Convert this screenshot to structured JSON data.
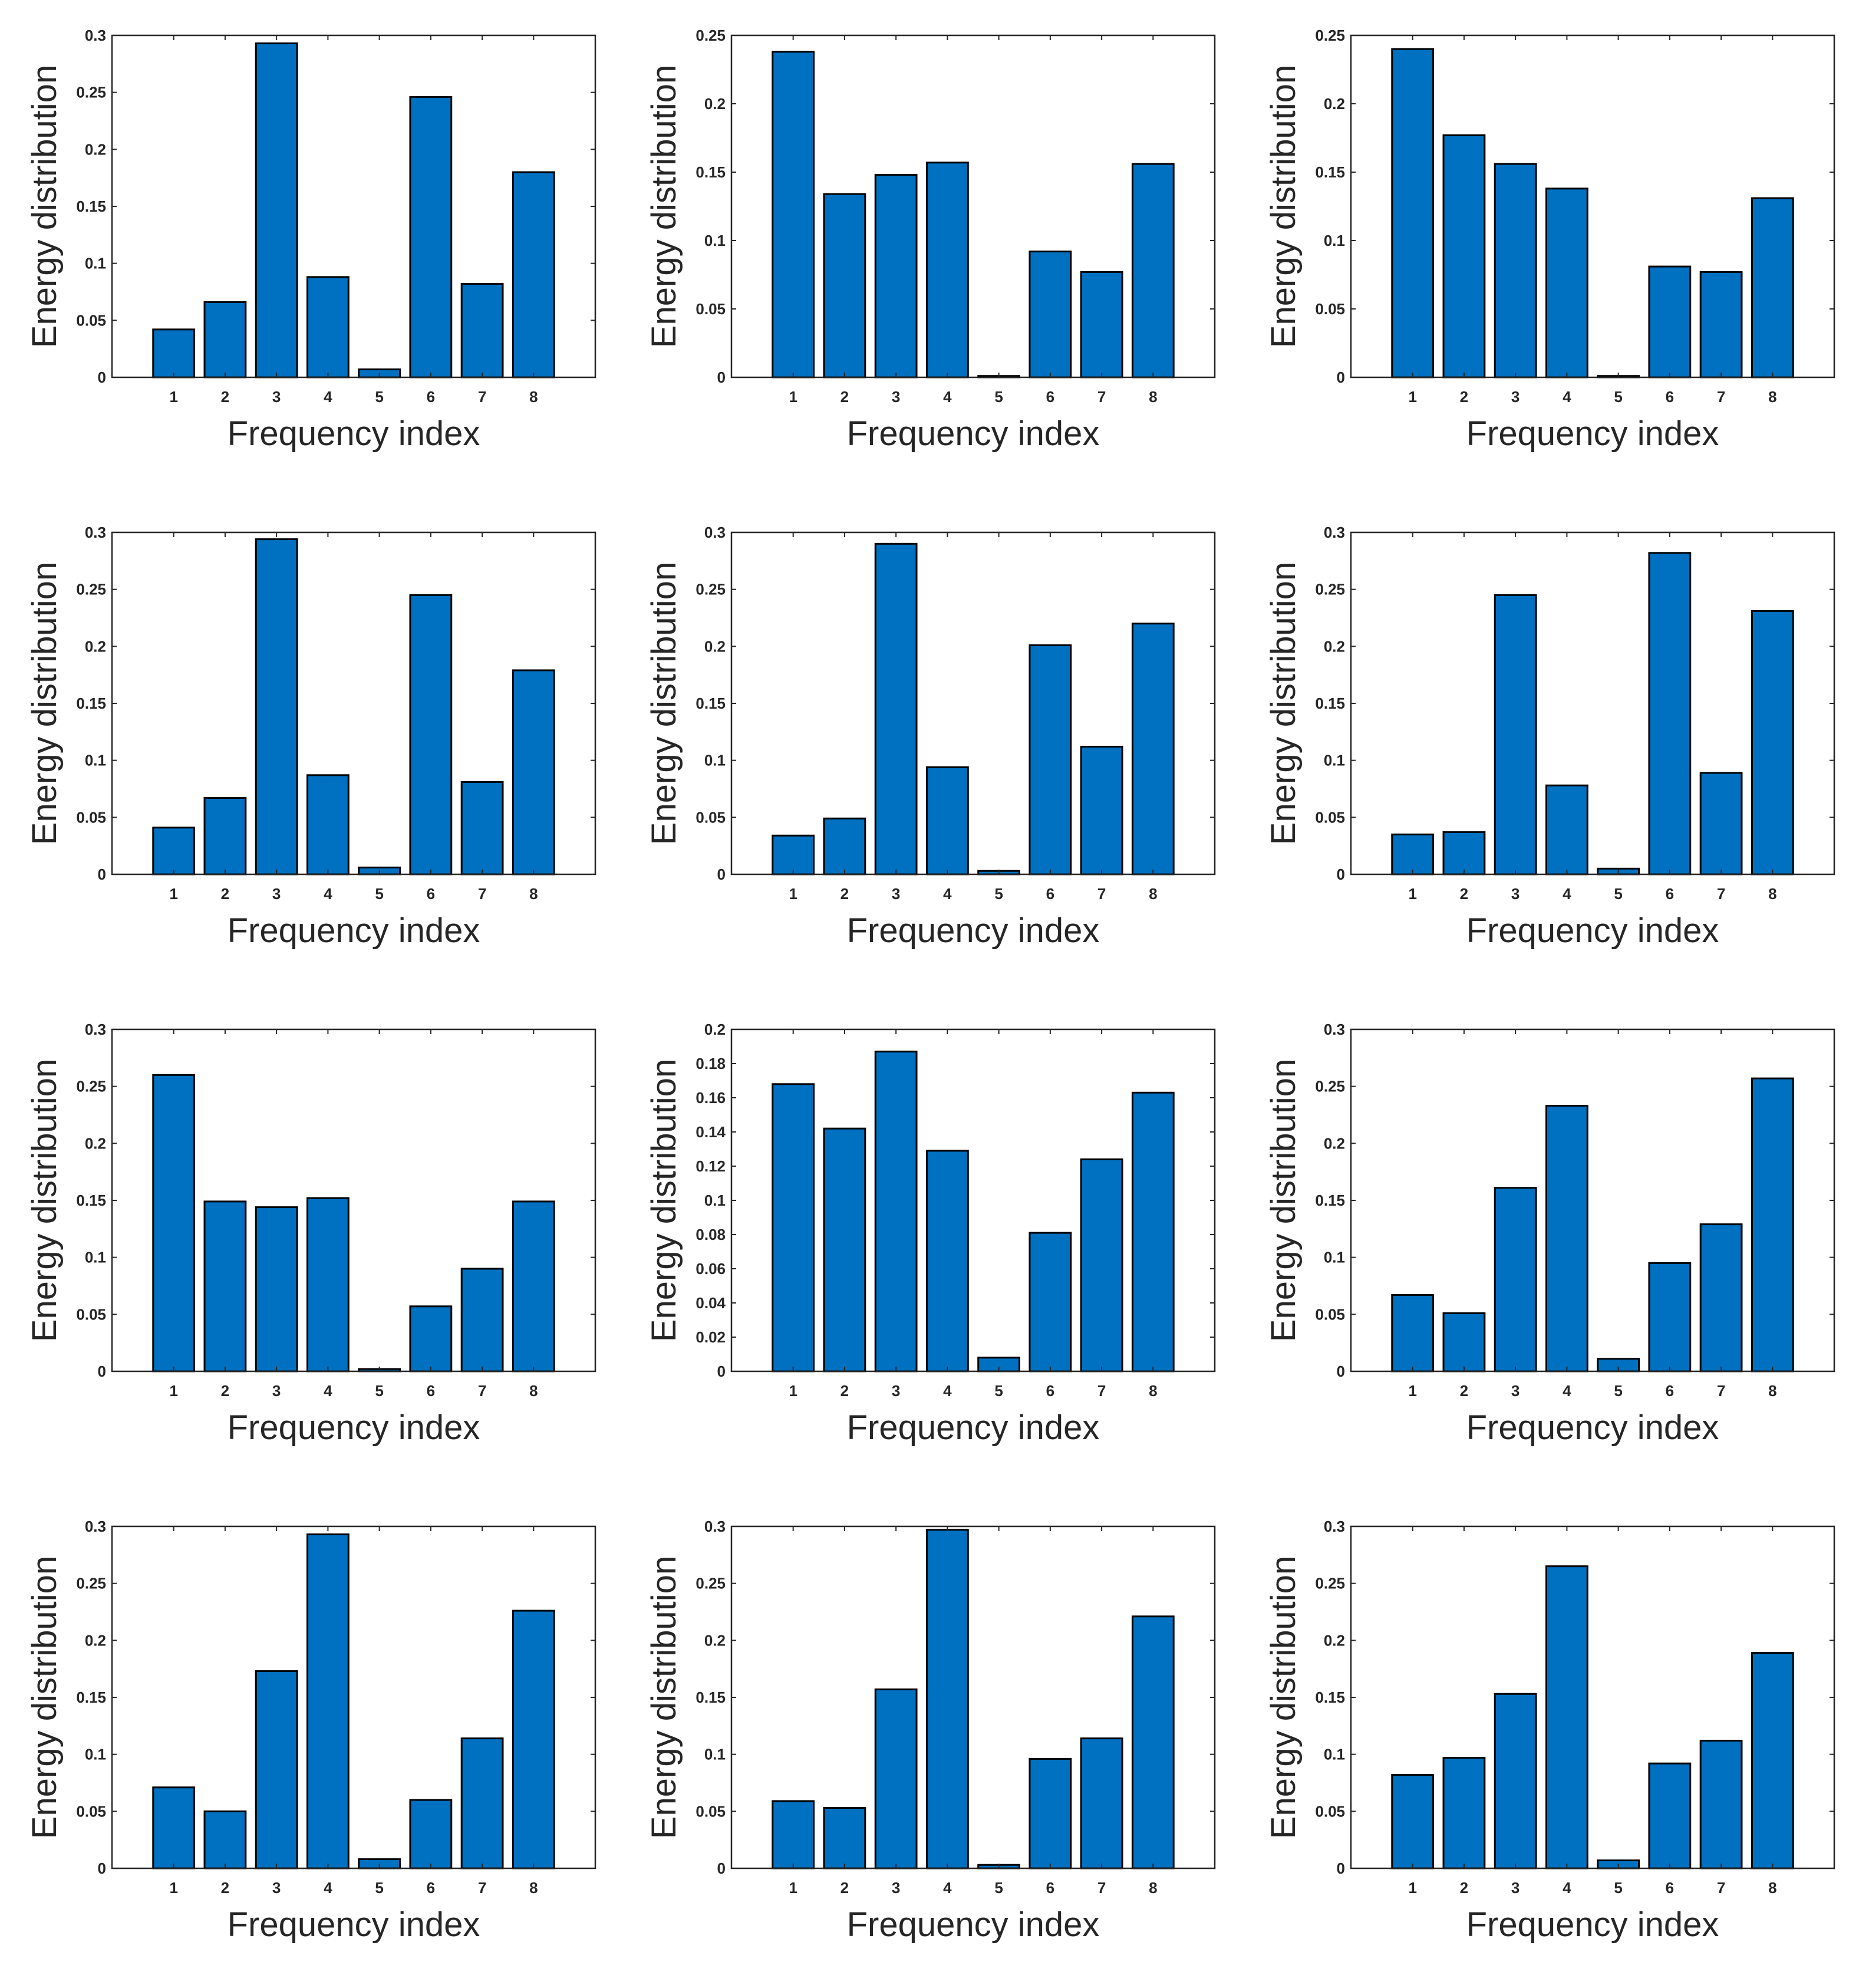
{
  "colors": {
    "bar": "#0070C0",
    "edge": "#000000",
    "axis": "#262626"
  },
  "chart_data": [
    {
      "type": "bar",
      "categories": [
        1,
        2,
        3,
        4,
        5,
        6,
        7,
        8
      ],
      "values": [
        0.042,
        0.066,
        0.293,
        0.088,
        0.007,
        0.246,
        0.082,
        0.18
      ],
      "xlabel": "Frequency index",
      "ylabel": "Energy distribution",
      "ylim": [
        0,
        0.3
      ],
      "yticks": [
        "0",
        "0.05",
        "0.1",
        "0.15",
        "0.2",
        "0.25",
        "0.3"
      ],
      "ytick_values": [
        0,
        0.05,
        0.1,
        0.15,
        0.2,
        0.25,
        0.3
      ],
      "xlim": [
        -0.2,
        9.2
      ],
      "grid": false
    },
    {
      "type": "bar",
      "categories": [
        1,
        2,
        3,
        4,
        5,
        6,
        7,
        8
      ],
      "values": [
        0.238,
        0.134,
        0.148,
        0.157,
        0.001,
        0.092,
        0.077,
        0.156
      ],
      "xlabel": "Frequency index",
      "ylabel": "Energy distribution",
      "ylim": [
        0,
        0.25
      ],
      "yticks": [
        "0",
        "0.05",
        "0.1",
        "0.15",
        "0.2",
        "0.25"
      ],
      "ytick_values": [
        0,
        0.05,
        0.1,
        0.15,
        0.2,
        0.25
      ],
      "xlim": [
        -0.2,
        9.2
      ],
      "grid": false
    },
    {
      "type": "bar",
      "categories": [
        1,
        2,
        3,
        4,
        5,
        6,
        7,
        8
      ],
      "values": [
        0.24,
        0.177,
        0.156,
        0.138,
        0.001,
        0.081,
        0.077,
        0.131
      ],
      "xlabel": "Frequency index",
      "ylabel": "Energy distribution",
      "ylim": [
        0,
        0.25
      ],
      "yticks": [
        "0",
        "0.05",
        "0.1",
        "0.15",
        "0.2",
        "0.25"
      ],
      "ytick_values": [
        0,
        0.05,
        0.1,
        0.15,
        0.2,
        0.25
      ],
      "xlim": [
        -0.2,
        9.2
      ],
      "grid": false
    },
    {
      "type": "bar",
      "categories": [
        1,
        2,
        3,
        4,
        5,
        6,
        7,
        8
      ],
      "values": [
        0.041,
        0.067,
        0.294,
        0.087,
        0.006,
        0.245,
        0.081,
        0.179
      ],
      "xlabel": "Frequency index",
      "ylabel": "Energy distribution",
      "ylim": [
        0,
        0.3
      ],
      "yticks": [
        "0",
        "0.05",
        "0.1",
        "0.15",
        "0.2",
        "0.25",
        "0.3"
      ],
      "ytick_values": [
        0,
        0.05,
        0.1,
        0.15,
        0.2,
        0.25,
        0.3
      ],
      "xlim": [
        -0.2,
        9.2
      ],
      "grid": false
    },
    {
      "type": "bar",
      "categories": [
        1,
        2,
        3,
        4,
        5,
        6,
        7,
        8
      ],
      "values": [
        0.034,
        0.049,
        0.29,
        0.094,
        0.003,
        0.201,
        0.112,
        0.22
      ],
      "xlabel": "Frequency index",
      "ylabel": "Energy distribution",
      "ylim": [
        0,
        0.3
      ],
      "yticks": [
        "0",
        "0.05",
        "0.1",
        "0.15",
        "0.2",
        "0.25",
        "0.3"
      ],
      "ytick_values": [
        0,
        0.05,
        0.1,
        0.15,
        0.2,
        0.25,
        0.3
      ],
      "xlim": [
        -0.2,
        9.2
      ],
      "grid": false
    },
    {
      "type": "bar",
      "categories": [
        1,
        2,
        3,
        4,
        5,
        6,
        7,
        8
      ],
      "values": [
        0.035,
        0.037,
        0.245,
        0.078,
        0.005,
        0.282,
        0.089,
        0.231
      ],
      "xlabel": "Frequency index",
      "ylabel": "Energy distribution",
      "ylim": [
        0,
        0.3
      ],
      "yticks": [
        "0",
        "0.05",
        "0.1",
        "0.15",
        "0.2",
        "0.25",
        "0.3"
      ],
      "ytick_values": [
        0,
        0.05,
        0.1,
        0.15,
        0.2,
        0.25,
        0.3
      ],
      "xlim": [
        -0.2,
        9.2
      ],
      "grid": false
    },
    {
      "type": "bar",
      "categories": [
        1,
        2,
        3,
        4,
        5,
        6,
        7,
        8
      ],
      "values": [
        0.26,
        0.149,
        0.144,
        0.152,
        0.002,
        0.057,
        0.09,
        0.149
      ],
      "xlabel": "Frequency index",
      "ylabel": "Energy distribution",
      "ylim": [
        0,
        0.3
      ],
      "yticks": [
        "0",
        "0.05",
        "0.1",
        "0.15",
        "0.2",
        "0.25",
        "0.3"
      ],
      "ytick_values": [
        0,
        0.05,
        0.1,
        0.15,
        0.2,
        0.25,
        0.3
      ],
      "xlim": [
        -0.2,
        9.2
      ],
      "grid": false
    },
    {
      "type": "bar",
      "categories": [
        1,
        2,
        3,
        4,
        5,
        6,
        7,
        8
      ],
      "values": [
        0.168,
        0.142,
        0.187,
        0.129,
        0.008,
        0.081,
        0.124,
        0.163
      ],
      "xlabel": "Frequency index",
      "ylabel": "Energy distribution",
      "ylim": [
        0,
        0.2
      ],
      "yticks": [
        "0",
        "0.02",
        "0.04",
        "0.06",
        "0.08",
        "0.1",
        "0.12",
        "0.14",
        "0.16",
        "0.18",
        "0.2"
      ],
      "ytick_values": [
        0,
        0.02,
        0.04,
        0.06,
        0.08,
        0.1,
        0.12,
        0.14,
        0.16,
        0.18,
        0.2
      ],
      "xlim": [
        -0.2,
        9.2
      ],
      "grid": false
    },
    {
      "type": "bar",
      "categories": [
        1,
        2,
        3,
        4,
        5,
        6,
        7,
        8
      ],
      "values": [
        0.067,
        0.051,
        0.161,
        0.233,
        0.011,
        0.095,
        0.129,
        0.257
      ],
      "xlabel": "Frequency index",
      "ylabel": "Energy distribution",
      "ylim": [
        0,
        0.3
      ],
      "yticks": [
        "0",
        "0.05",
        "0.1",
        "0.15",
        "0.2",
        "0.25",
        "0.3"
      ],
      "ytick_values": [
        0,
        0.05,
        0.1,
        0.15,
        0.2,
        0.25,
        0.3
      ],
      "xlim": [
        -0.2,
        9.2
      ],
      "grid": false
    },
    {
      "type": "bar",
      "categories": [
        1,
        2,
        3,
        4,
        5,
        6,
        7,
        8
      ],
      "values": [
        0.071,
        0.05,
        0.173,
        0.293,
        0.008,
        0.06,
        0.114,
        0.226
      ],
      "xlabel": "Frequency index",
      "ylabel": "Energy distribution",
      "ylim": [
        0,
        0.3
      ],
      "yticks": [
        "0",
        "0.05",
        "0.1",
        "0.15",
        "0.2",
        "0.25",
        "0.3"
      ],
      "ytick_values": [
        0,
        0.05,
        0.1,
        0.15,
        0.2,
        0.25,
        0.3
      ],
      "xlim": [
        -0.2,
        9.2
      ],
      "grid": false
    },
    {
      "type": "bar",
      "categories": [
        1,
        2,
        3,
        4,
        5,
        6,
        7,
        8
      ],
      "values": [
        0.059,
        0.053,
        0.157,
        0.297,
        0.003,
        0.096,
        0.114,
        0.221
      ],
      "xlabel": "Frequency index",
      "ylabel": "Energy distribution",
      "ylim": [
        0,
        0.3
      ],
      "yticks": [
        "0",
        "0.05",
        "0.1",
        "0.15",
        "0.2",
        "0.25",
        "0.3"
      ],
      "ytick_values": [
        0,
        0.05,
        0.1,
        0.15,
        0.2,
        0.25,
        0.3
      ],
      "xlim": [
        -0.2,
        9.2
      ],
      "grid": false
    },
    {
      "type": "bar",
      "categories": [
        1,
        2,
        3,
        4,
        5,
        6,
        7,
        8
      ],
      "values": [
        0.082,
        0.097,
        0.153,
        0.265,
        0.007,
        0.092,
        0.112,
        0.189
      ],
      "xlabel": "Frequency index",
      "ylabel": "Energy distribution",
      "ylim": [
        0,
        0.3
      ],
      "yticks": [
        "0",
        "0.05",
        "0.1",
        "0.15",
        "0.2",
        "0.25",
        "0.3"
      ],
      "ytick_values": [
        0,
        0.05,
        0.1,
        0.15,
        0.2,
        0.25,
        0.3
      ],
      "xlim": [
        -0.2,
        9.2
      ],
      "grid": false
    }
  ]
}
